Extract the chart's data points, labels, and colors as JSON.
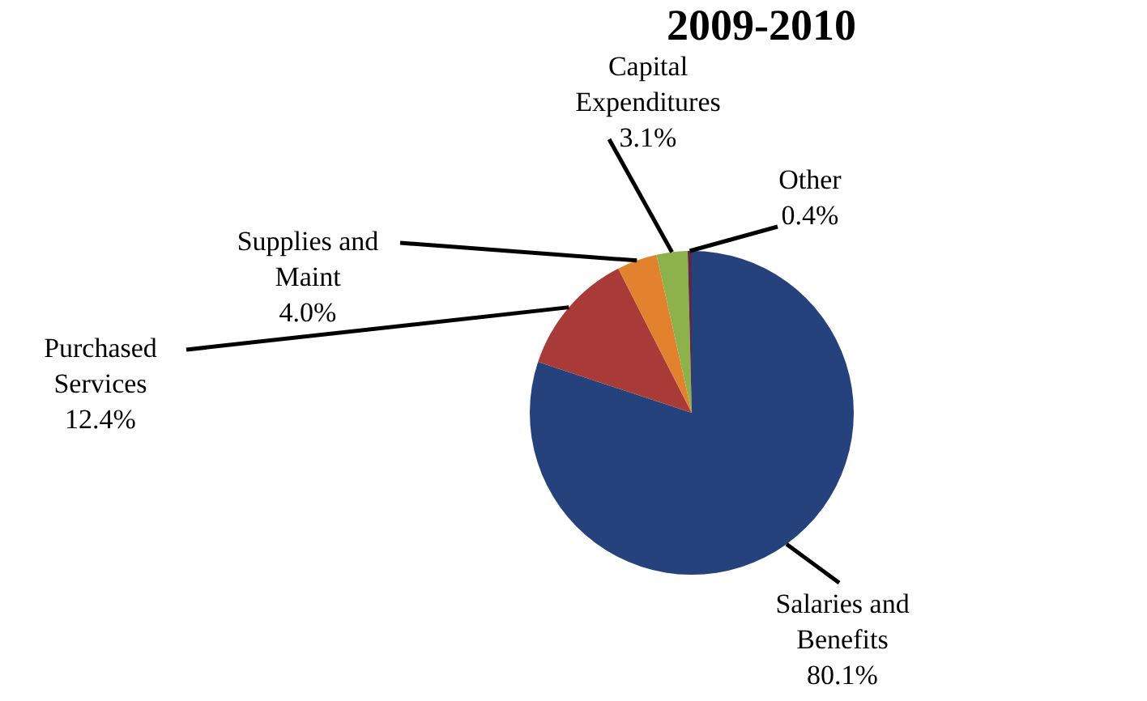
{
  "chart_data": {
    "type": "pie",
    "title": "2009-2010",
    "categories": [
      "Salaries and Benefits",
      "Purchased Services",
      "Supplies and Maint",
      "Capital Expenditures",
      "Other"
    ],
    "values": [
      80.1,
      12.4,
      4.0,
      3.1,
      0.4
    ],
    "value_labels": [
      "80.1%",
      "12.4%",
      "4.0%",
      "3.1%",
      "0.4%"
    ],
    "colors": [
      "#25427c",
      "#a83b37",
      "#e3822e",
      "#8db24b",
      "#5b2848"
    ],
    "legend": false
  }
}
